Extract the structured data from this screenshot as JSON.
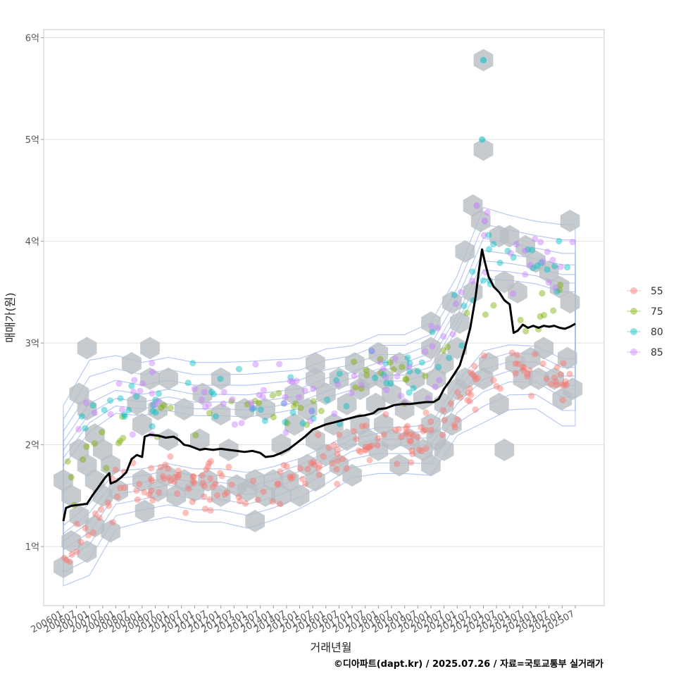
{
  "chart_data": {
    "type": "scatter",
    "xlabel": "거래년월",
    "ylabel": "매매가(원)",
    "caption": "©디아파트(dapt.kr) / 2025.07.26 / 자료=국토교통부 실거래가",
    "x_ticks": [
      "200601",
      "200607",
      "200701",
      "200707",
      "200801",
      "200807",
      "200901",
      "200907",
      "201001",
      "201007",
      "201101",
      "201107",
      "201201",
      "201207",
      "201301",
      "201307",
      "201401",
      "201407",
      "201501",
      "201507",
      "201601",
      "201607",
      "201701",
      "201707",
      "201801",
      "201807",
      "201901",
      "201907",
      "202001",
      "202007",
      "202101",
      "202107",
      "202201",
      "202207",
      "202301",
      "202307",
      "202401",
      "202407",
      "202501",
      "202507"
    ],
    "y_ticks": [
      {
        "value": 1,
        "label": "1억"
      },
      {
        "value": 2,
        "label": "2억"
      },
      {
        "value": 3,
        "label": "3억"
      },
      {
        "value": 4,
        "label": "4억"
      },
      {
        "value": 5,
        "label": "5억"
      },
      {
        "value": 6,
        "label": "6억"
      }
    ],
    "x_range": [
      2005.25,
      2026.6
    ],
    "y_range": [
      0.42,
      6.08
    ],
    "y_unit": "억",
    "grid": true,
    "legend_position": "right",
    "legend": [
      {
        "name": "55",
        "color": "#F8766D"
      },
      {
        "name": "75",
        "color": "#7CAE00"
      },
      {
        "name": "80",
        "color": "#00BFC4"
      },
      {
        "name": "85",
        "color": "#C77CFF"
      }
    ],
    "trend_line": {
      "color": "#000000",
      "points": [
        [
          2006.0,
          1.25
        ],
        [
          2006.1,
          1.38
        ],
        [
          2006.3,
          1.4
        ],
        [
          2006.6,
          1.41
        ],
        [
          2006.9,
          1.42
        ],
        [
          2007.1,
          1.5
        ],
        [
          2007.3,
          1.57
        ],
        [
          2007.6,
          1.68
        ],
        [
          2007.75,
          1.72
        ],
        [
          2007.8,
          1.62
        ],
        [
          2008.0,
          1.64
        ],
        [
          2008.2,
          1.68
        ],
        [
          2008.4,
          1.73
        ],
        [
          2008.6,
          1.86
        ],
        [
          2008.8,
          1.9
        ],
        [
          2009.0,
          1.88
        ],
        [
          2009.1,
          2.08
        ],
        [
          2009.3,
          2.1
        ],
        [
          2009.6,
          2.09
        ],
        [
          2009.9,
          2.07
        ],
        [
          2010.2,
          2.08
        ],
        [
          2010.4,
          2.05
        ],
        [
          2010.6,
          2.0
        ],
        [
          2010.8,
          1.99
        ],
        [
          2011.0,
          1.97
        ],
        [
          2011.2,
          1.95
        ],
        [
          2011.4,
          1.96
        ],
        [
          2011.7,
          1.95
        ],
        [
          2012.0,
          1.96
        ],
        [
          2012.3,
          1.95
        ],
        [
          2012.6,
          1.94
        ],
        [
          2012.9,
          1.93
        ],
        [
          2013.2,
          1.94
        ],
        [
          2013.5,
          1.92
        ],
        [
          2013.7,
          1.88
        ],
        [
          2014.0,
          1.89
        ],
        [
          2014.3,
          1.92
        ],
        [
          2014.6,
          1.96
        ],
        [
          2014.9,
          2.02
        ],
        [
          2015.2,
          2.08
        ],
        [
          2015.5,
          2.15
        ],
        [
          2015.8,
          2.18
        ],
        [
          2016.0,
          2.2
        ],
        [
          2016.3,
          2.22
        ],
        [
          2016.6,
          2.24
        ],
        [
          2016.9,
          2.26
        ],
        [
          2017.2,
          2.28
        ],
        [
          2017.5,
          2.29
        ],
        [
          2017.8,
          2.31
        ],
        [
          2018.0,
          2.35
        ],
        [
          2018.3,
          2.36
        ],
        [
          2018.6,
          2.39
        ],
        [
          2018.9,
          2.4
        ],
        [
          2019.2,
          2.4
        ],
        [
          2019.5,
          2.41
        ],
        [
          2019.8,
          2.42
        ],
        [
          2020.1,
          2.42
        ],
        [
          2020.3,
          2.45
        ],
        [
          2020.5,
          2.55
        ],
        [
          2020.7,
          2.62
        ],
        [
          2020.9,
          2.7
        ],
        [
          2021.1,
          2.78
        ],
        [
          2021.3,
          2.95
        ],
        [
          2021.5,
          3.15
        ],
        [
          2021.7,
          3.45
        ],
        [
          2021.85,
          3.75
        ],
        [
          2021.95,
          3.92
        ],
        [
          2022.05,
          3.8
        ],
        [
          2022.2,
          3.65
        ],
        [
          2022.4,
          3.55
        ],
        [
          2022.6,
          3.5
        ],
        [
          2022.8,
          3.42
        ],
        [
          2023.0,
          3.38
        ],
        [
          2023.15,
          3.1
        ],
        [
          2023.3,
          3.12
        ],
        [
          2023.5,
          3.18
        ],
        [
          2023.7,
          3.15
        ],
        [
          2023.9,
          3.17
        ],
        [
          2024.1,
          3.15
        ],
        [
          2024.3,
          3.17
        ],
        [
          2024.5,
          3.16
        ],
        [
          2024.7,
          3.17
        ],
        [
          2024.9,
          3.15
        ],
        [
          2025.1,
          3.14
        ],
        [
          2025.3,
          3.16
        ],
        [
          2025.5,
          3.19
        ]
      ]
    },
    "price_bands": [
      {
        "name": "55",
        "color": "#F8766D",
        "center": [
          [
            2006.0,
            1.0
          ],
          [
            2007.0,
            1.15
          ],
          [
            2008.0,
            1.55
          ],
          [
            2009.0,
            1.6
          ],
          [
            2010.0,
            1.65
          ],
          [
            2011.0,
            1.6
          ],
          [
            2012.0,
            1.6
          ],
          [
            2013.0,
            1.55
          ],
          [
            2014.0,
            1.62
          ],
          [
            2015.0,
            1.72
          ],
          [
            2016.0,
            1.85
          ],
          [
            2017.0,
            2.0
          ],
          [
            2018.0,
            2.05
          ],
          [
            2019.0,
            2.05
          ],
          [
            2020.0,
            2.05
          ],
          [
            2021.0,
            2.45
          ],
          [
            2022.0,
            2.65
          ],
          [
            2023.0,
            2.75
          ],
          [
            2024.0,
            2.75
          ],
          [
            2025.0,
            2.6
          ]
        ],
        "spread": 0.17,
        "n": 210
      },
      {
        "name": "75",
        "color": "#7CAE00",
        "center": [
          [
            2006.0,
            1.55
          ],
          [
            2007.0,
            1.9
          ],
          [
            2008.0,
            2.1
          ],
          [
            2009.0,
            2.2
          ],
          [
            2010.0,
            2.3
          ],
          [
            2011.0,
            2.3
          ],
          [
            2013.0,
            2.3
          ],
          [
            2015.0,
            2.4
          ],
          [
            2016.0,
            2.5
          ],
          [
            2017.0,
            2.6
          ],
          [
            2018.0,
            2.6
          ],
          [
            2019.0,
            2.65
          ],
          [
            2020.0,
            2.7
          ],
          [
            2021.0,
            3.1
          ],
          [
            2022.0,
            3.4
          ],
          [
            2023.0,
            3.3
          ],
          [
            2024.0,
            3.35
          ],
          [
            2025.0,
            3.3
          ]
        ],
        "spread": 0.2,
        "n": 60
      },
      {
        "name": "80",
        "color": "#00BFC4",
        "center": [
          [
            2006.0,
            2.0
          ],
          [
            2007.0,
            2.4
          ],
          [
            2009.0,
            2.4
          ],
          [
            2010.0,
            2.4
          ],
          [
            2011.0,
            2.45
          ],
          [
            2013.0,
            2.45
          ],
          [
            2015.0,
            2.45
          ],
          [
            2016.0,
            2.55
          ],
          [
            2017.0,
            2.65
          ],
          [
            2018.0,
            2.75
          ],
          [
            2019.0,
            2.75
          ],
          [
            2020.0,
            2.8
          ],
          [
            2021.0,
            3.25
          ],
          [
            2022.0,
            3.8
          ],
          [
            2023.0,
            3.8
          ],
          [
            2024.0,
            3.75
          ],
          [
            2025.0,
            3.7
          ]
        ],
        "spread": 0.22,
        "n": 80
      },
      {
        "name": "85",
        "color": "#C77CFF",
        "center": [
          [
            2006.0,
            2.0
          ],
          [
            2007.0,
            2.4
          ],
          [
            2008.0,
            2.5
          ],
          [
            2009.0,
            2.45
          ],
          [
            2010.0,
            2.5
          ],
          [
            2011.0,
            2.45
          ],
          [
            2013.0,
            2.45
          ],
          [
            2015.0,
            2.5
          ],
          [
            2016.0,
            2.6
          ],
          [
            2017.0,
            2.65
          ],
          [
            2018.0,
            2.75
          ],
          [
            2019.0,
            2.75
          ],
          [
            2020.0,
            2.85
          ],
          [
            2021.0,
            3.3
          ],
          [
            2022.0,
            3.9
          ],
          [
            2023.0,
            3.85
          ],
          [
            2024.0,
            3.8
          ],
          [
            2025.0,
            3.75
          ]
        ],
        "spread": 0.24,
        "n": 90
      }
    ],
    "notable_points": [
      {
        "x": 2022.0,
        "y": 5.78,
        "series": "80"
      },
      {
        "x": 2021.95,
        "y": 5.0,
        "series": "80"
      },
      {
        "x": 2021.75,
        "y": 4.35,
        "series": "85"
      },
      {
        "x": 2022.05,
        "y": 4.2,
        "series": "85"
      }
    ],
    "hex_bins": [
      [
        2006.0,
        0.8
      ],
      [
        2006.0,
        1.65
      ],
      [
        2006.3,
        1.05
      ],
      [
        2006.3,
        1.5
      ],
      [
        2006.6,
        1.3
      ],
      [
        2006.6,
        1.95
      ],
      [
        2006.6,
        2.5
      ],
      [
        2006.9,
        0.95
      ],
      [
        2006.9,
        1.8
      ],
      [
        2006.9,
        2.35
      ],
      [
        2006.9,
        2.95
      ],
      [
        2007.2,
        1.2
      ],
      [
        2007.2,
        1.65
      ],
      [
        2007.2,
        2.1
      ],
      [
        2007.5,
        1.5
      ],
      [
        2007.5,
        1.95
      ],
      [
        2007.8,
        1.8
      ],
      [
        2007.8,
        1.15
      ],
      [
        2008.1,
        1.55
      ],
      [
        2008.6,
        2.8
      ],
      [
        2008.8,
        2.4
      ],
      [
        2009.0,
        1.65
      ],
      [
        2009.0,
        2.2
      ],
      [
        2009.1,
        1.35
      ],
      [
        2009.3,
        2.95
      ],
      [
        2009.3,
        2.65
      ],
      [
        2009.6,
        1.55
      ],
      [
        2009.6,
        2.35
      ],
      [
        2009.9,
        1.7
      ],
      [
        2010.0,
        2.05
      ],
      [
        2010.0,
        2.65
      ],
      [
        2010.3,
        1.5
      ],
      [
        2010.6,
        1.65
      ],
      [
        2010.6,
        2.35
      ],
      [
        2011.0,
        1.55
      ],
      [
        2011.2,
        2.05
      ],
      [
        2011.3,
        2.5
      ],
      [
        2011.5,
        1.65
      ],
      [
        2012.0,
        1.5
      ],
      [
        2012.0,
        2.3
      ],
      [
        2012.0,
        2.65
      ],
      [
        2012.3,
        1.95
      ],
      [
        2012.6,
        1.6
      ],
      [
        2012.9,
        2.35
      ],
      [
        2013.0,
        1.55
      ],
      [
        2013.3,
        1.25
      ],
      [
        2013.3,
        1.65
      ],
      [
        2013.7,
        1.5
      ],
      [
        2013.7,
        2.35
      ],
      [
        2014.0,
        1.65
      ],
      [
        2014.3,
        1.5
      ],
      [
        2014.3,
        2.0
      ],
      [
        2014.6,
        1.65
      ],
      [
        2014.8,
        2.2
      ],
      [
        2014.8,
        2.5
      ],
      [
        2015.0,
        1.5
      ],
      [
        2015.3,
        1.8
      ],
      [
        2015.3,
        2.35
      ],
      [
        2015.6,
        1.65
      ],
      [
        2015.6,
        2.05
      ],
      [
        2015.6,
        2.65
      ],
      [
        2015.6,
        2.8
      ],
      [
        2016.0,
        1.9
      ],
      [
        2016.0,
        2.5
      ],
      [
        2016.3,
        2.2
      ],
      [
        2016.5,
        1.8
      ],
      [
        2016.5,
        2.65
      ],
      [
        2016.8,
        2.05
      ],
      [
        2016.8,
        2.4
      ],
      [
        2017.0,
        1.7
      ],
      [
        2017.1,
        2.8
      ],
      [
        2017.3,
        2.2
      ],
      [
        2017.3,
        2.55
      ],
      [
        2017.6,
        2.05
      ],
      [
        2017.6,
        2.65
      ],
      [
        2017.9,
        2.4
      ],
      [
        2018.0,
        1.95
      ],
      [
        2018.0,
        2.9
      ],
      [
        2018.2,
        2.2
      ],
      [
        2018.2,
        2.65
      ],
      [
        2018.5,
        2.05
      ],
      [
        2018.5,
        2.5
      ],
      [
        2018.8,
        1.8
      ],
      [
        2018.8,
        2.8
      ],
      [
        2019.0,
        2.35
      ],
      [
        2019.2,
        2.05
      ],
      [
        2019.4,
        2.65
      ],
      [
        2019.7,
        1.95
      ],
      [
        2019.7,
        2.45
      ],
      [
        2020.0,
        1.8
      ],
      [
        2020.0,
        2.2
      ],
      [
        2020.0,
        3.2
      ],
      [
        2020.0,
        2.95
      ],
      [
        2020.2,
        2.05
      ],
      [
        2020.2,
        2.65
      ],
      [
        2020.5,
        1.95
      ],
      [
        2020.5,
        2.4
      ],
      [
        2020.5,
        2.8
      ],
      [
        2020.8,
        2.2
      ],
      [
        2020.8,
        3.4
      ],
      [
        2021.0,
        2.55
      ],
      [
        2021.0,
        2.95
      ],
      [
        2021.1,
        3.2
      ],
      [
        2021.3,
        2.65
      ],
      [
        2021.3,
        3.9
      ],
      [
        2021.6,
        3.5
      ],
      [
        2021.6,
        4.35
      ],
      [
        2021.9,
        4.2
      ],
      [
        2022.0,
        5.78
      ],
      [
        2022.0,
        4.9
      ],
      [
        2022.0,
        2.65
      ],
      [
        2022.2,
        2.8
      ],
      [
        2022.6,
        2.4
      ],
      [
        2022.6,
        4.05
      ],
      [
        2022.8,
        1.95
      ],
      [
        2022.8,
        3.6
      ],
      [
        2023.0,
        4.05
      ],
      [
        2023.2,
        2.8
      ],
      [
        2023.3,
        3.5
      ],
      [
        2023.5,
        2.65
      ],
      [
        2023.6,
        3.95
      ],
      [
        2023.8,
        2.85
      ],
      [
        2024.0,
        3.8
      ],
      [
        2024.1,
        2.65
      ],
      [
        2024.3,
        2.95
      ],
      [
        2024.5,
        3.7
      ],
      [
        2024.7,
        2.65
      ],
      [
        2024.9,
        3.55
      ],
      [
        2025.0,
        2.45
      ],
      [
        2025.2,
        2.85
      ],
      [
        2025.3,
        3.4
      ],
      [
        2025.3,
        4.2
      ],
      [
        2025.4,
        2.55
      ]
    ],
    "contour_levels": [
      0.22,
      0.38,
      0.52,
      0.64,
      0.74,
      0.83,
      0.92
    ]
  }
}
